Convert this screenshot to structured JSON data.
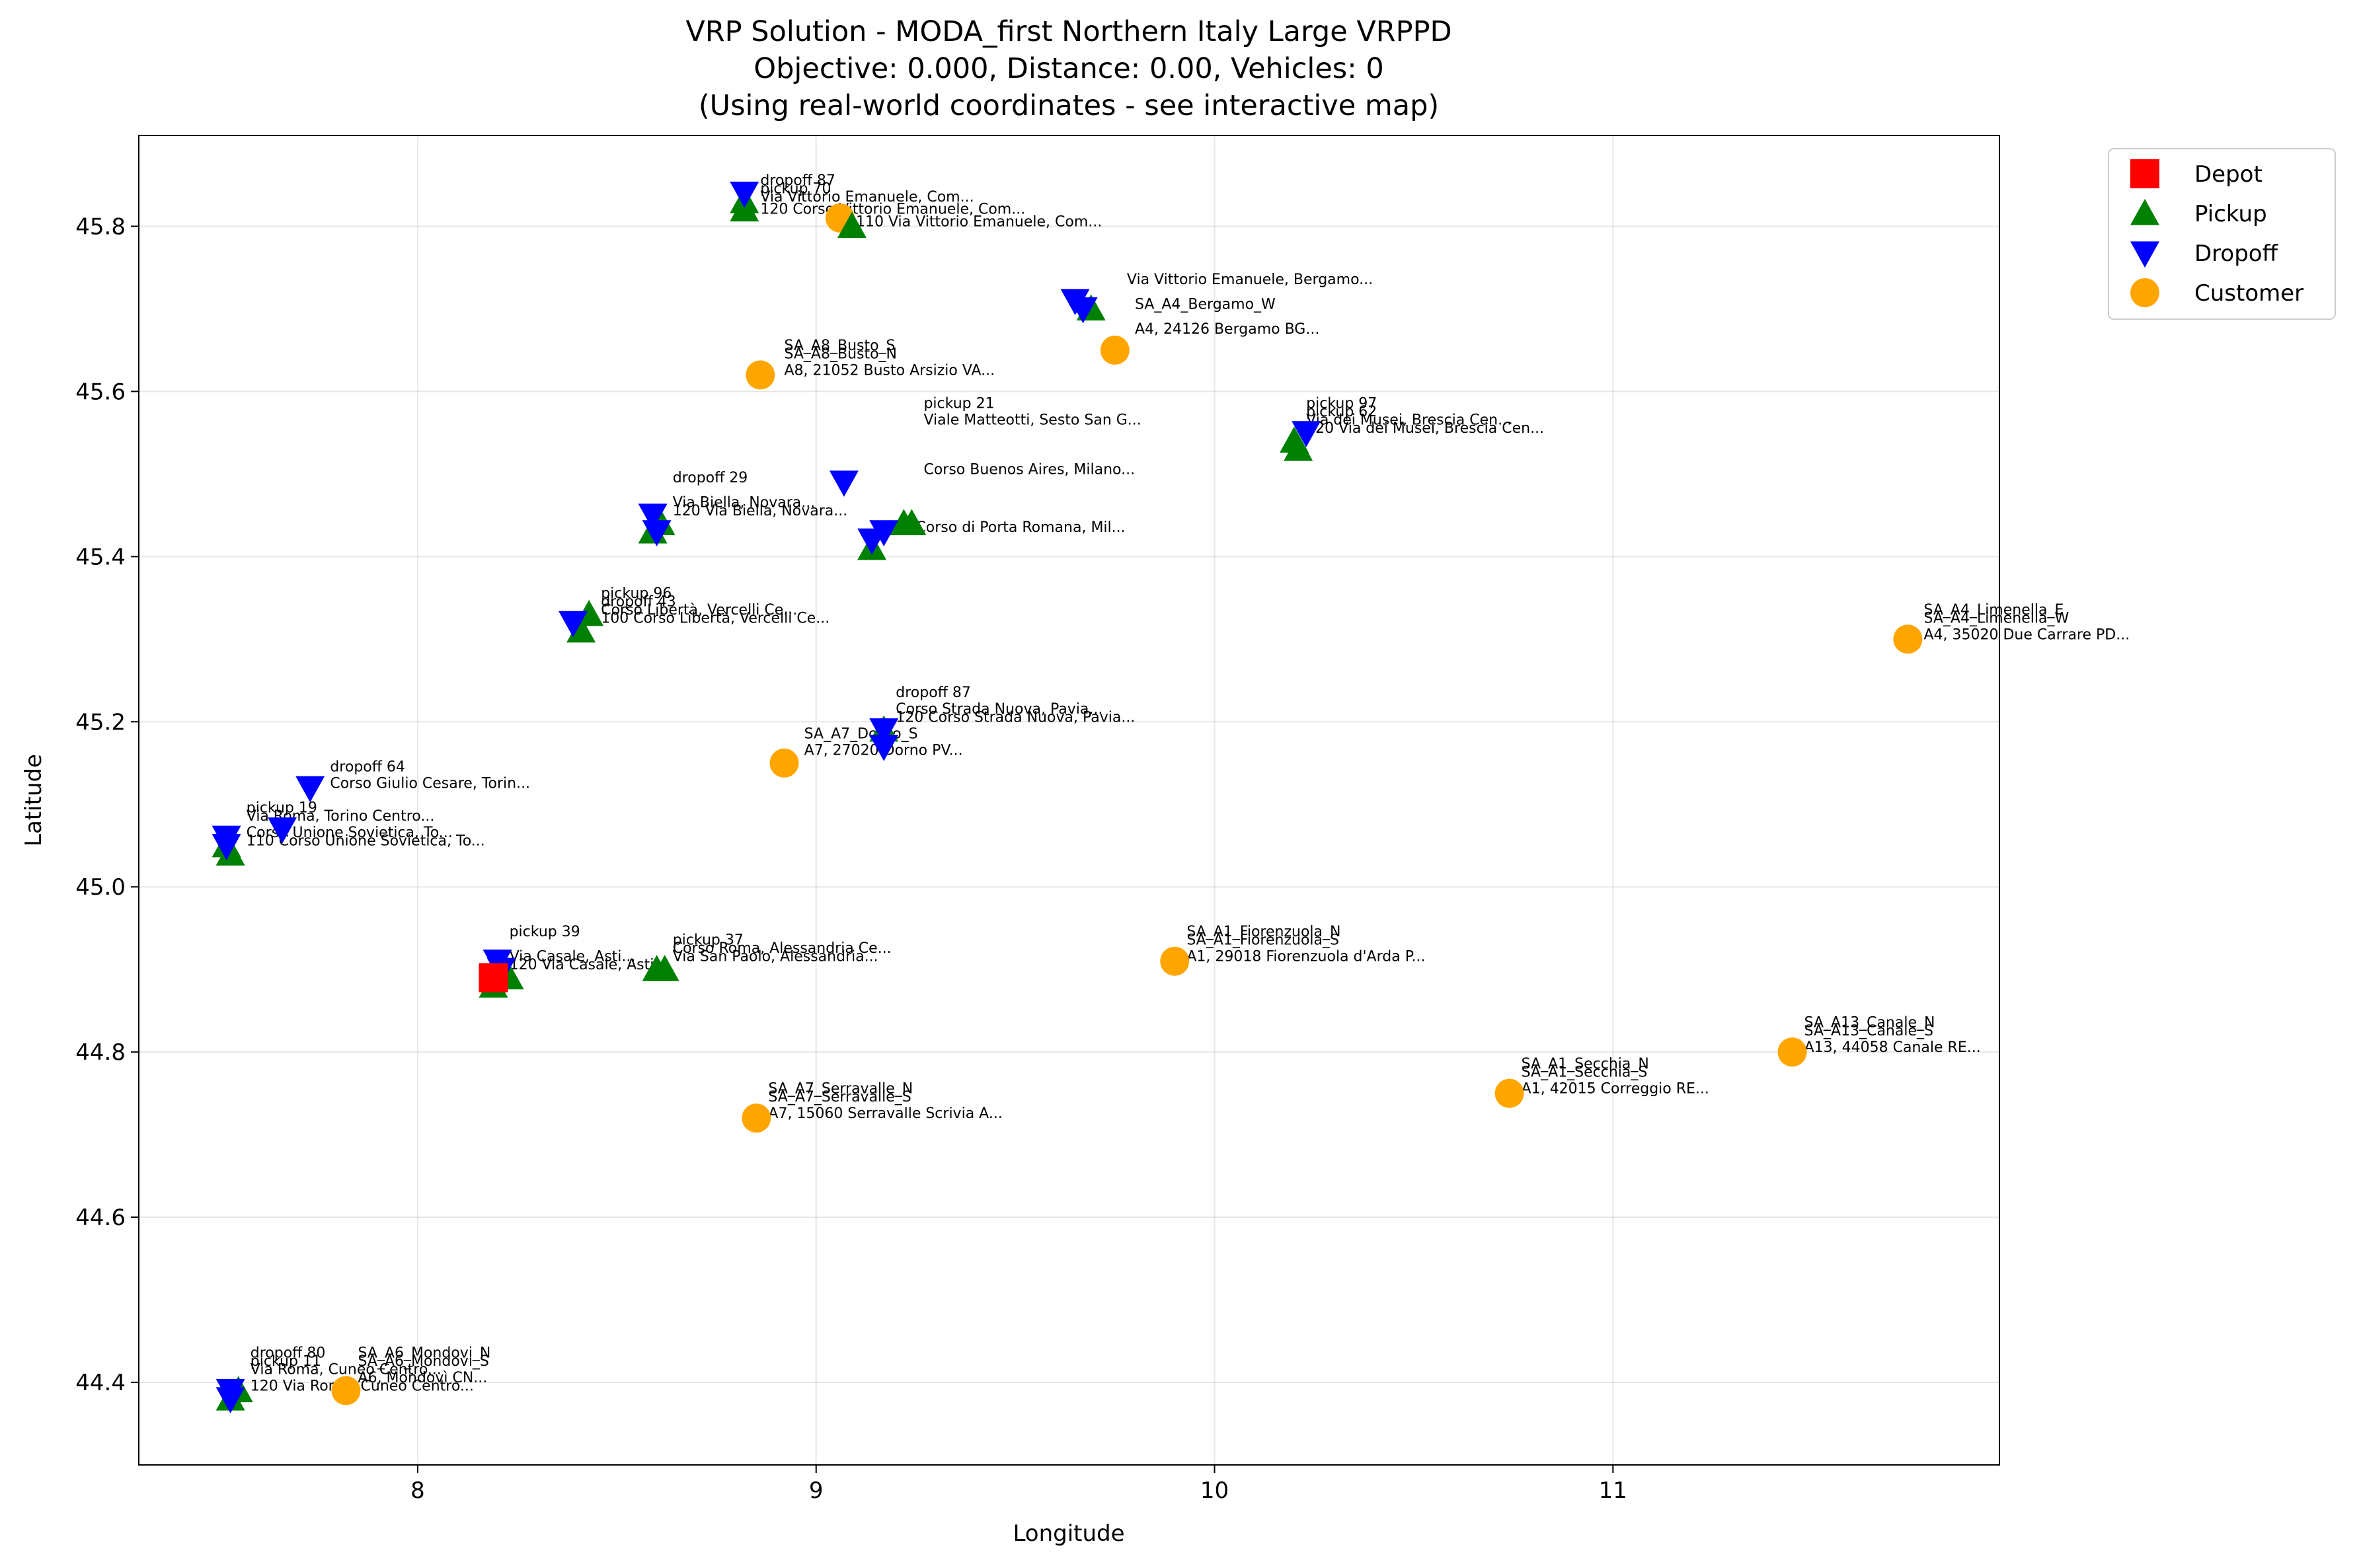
{
  "chart_data": {
    "type": "scatter",
    "title": "VRP Solution - MODA_first Northern Italy Large VRPPD",
    "subtitle": "Objective: 0.000, Distance: 0.00, Vehicles: 0",
    "subtitle2": "(Using real-world coordinates - see interactive map)",
    "xlabel": "Longitude",
    "ylabel": "Latitude",
    "xlim": [
      7.3,
      11.97
    ],
    "ylim": [
      44.3,
      45.91
    ],
    "xticks": [
      "8",
      "9",
      "10",
      "11"
    ],
    "yticks": [
      "44.4",
      "44.6",
      "44.8",
      "45.0",
      "45.2",
      "45.4",
      "45.6",
      "45.8"
    ],
    "grid": true,
    "legend_position": "upper-right-outside",
    "series": [
      {
        "name": "Depot",
        "marker": "square",
        "color": "#ff0000",
        "points": [
          [
            8.19,
            44.89
          ]
        ]
      },
      {
        "name": "Pickup",
        "marker": "triangle-up",
        "color": "#008000",
        "points": [
          [
            8.82,
            45.83
          ],
          [
            8.82,
            45.82
          ],
          [
            9.09,
            45.8
          ],
          [
            9.69,
            45.7
          ],
          [
            10.2,
            45.54
          ],
          [
            10.21,
            45.53
          ],
          [
            8.59,
            45.43
          ],
          [
            8.61,
            45.44
          ],
          [
            9.14,
            45.41
          ],
          [
            9.22,
            45.44
          ],
          [
            9.24,
            45.44
          ],
          [
            8.41,
            45.31
          ],
          [
            8.43,
            45.33
          ],
          [
            9.17,
            45.19
          ],
          [
            7.52,
            45.05
          ],
          [
            7.53,
            45.04
          ],
          [
            8.19,
            44.88
          ],
          [
            8.23,
            44.89
          ],
          [
            8.6,
            44.9
          ],
          [
            8.62,
            44.9
          ],
          [
            7.53,
            44.38
          ],
          [
            7.55,
            44.39
          ]
        ]
      },
      {
        "name": "Dropoff",
        "marker": "triangle-down",
        "color": "#0000ff",
        "points": [
          [
            8.82,
            45.84
          ],
          [
            9.65,
            45.71
          ],
          [
            9.67,
            45.7
          ],
          [
            10.23,
            45.55
          ],
          [
            8.59,
            45.45
          ],
          [
            8.6,
            45.43
          ],
          [
            9.07,
            45.49
          ],
          [
            9.14,
            45.42
          ],
          [
            9.17,
            45.43
          ],
          [
            8.39,
            45.32
          ],
          [
            9.17,
            45.19
          ],
          [
            9.17,
            45.17
          ],
          [
            7.52,
            45.06
          ],
          [
            7.52,
            45.05
          ],
          [
            7.66,
            45.07
          ],
          [
            7.73,
            45.12
          ],
          [
            8.2,
            44.91
          ],
          [
            8.21,
            44.9
          ],
          [
            7.53,
            44.39
          ],
          [
            7.53,
            44.38
          ]
        ]
      },
      {
        "name": "Customer",
        "marker": "circle",
        "color": "#ffa500",
        "points": [
          [
            9.06,
            45.81
          ],
          [
            8.86,
            45.62
          ],
          [
            9.75,
            45.65
          ],
          [
            11.74,
            45.3
          ],
          [
            8.92,
            45.15
          ],
          [
            9.9,
            44.91
          ],
          [
            8.85,
            44.72
          ],
          [
            10.74,
            44.75
          ],
          [
            11.45,
            44.8
          ],
          [
            7.82,
            44.39
          ]
        ]
      }
    ],
    "annotations": [
      {
        "x": 8.92,
        "y": 45.65,
        "text": "SA_A8_Busto_S"
      },
      {
        "x": 8.92,
        "y": 45.64,
        "text": "SA_A8_Busto_N"
      },
      {
        "x": 8.92,
        "y": 45.62,
        "text": "A8, 21052 Busto Arsizio VA..."
      },
      {
        "x": 9.8,
        "y": 45.7,
        "text": "SA_A4_Bergamo_W"
      },
      {
        "x": 9.8,
        "y": 45.67,
        "text": "A4, 24126 Bergamo BG..."
      },
      {
        "x": 9.78,
        "y": 45.73,
        "text": "Via Vittorio Emanuele, Bergamo..."
      },
      {
        "x": 8.86,
        "y": 45.85,
        "text": "dropoff 87"
      },
      {
        "x": 8.86,
        "y": 45.84,
        "text": "pickup 70"
      },
      {
        "x": 8.86,
        "y": 45.83,
        "text": "Via Vittorio Emanuele, Com..."
      },
      {
        "x": 8.86,
        "y": 45.815,
        "text": "120 Corso Vittorio Emanuele, Com..."
      },
      {
        "x": 9.1,
        "y": 45.8,
        "text": "110 Via Vittorio Emanuele, Com..."
      },
      {
        "x": 10.23,
        "y": 45.58,
        "text": "pickup 97"
      },
      {
        "x": 10.23,
        "y": 45.57,
        "text": "pickup 62"
      },
      {
        "x": 10.23,
        "y": 45.56,
        "text": "Via dei Musei, Brescia Cen..."
      },
      {
        "x": 10.23,
        "y": 45.55,
        "text": "120 Via dei Musei, Brescia Cen..."
      },
      {
        "x": 9.27,
        "y": 45.58,
        "text": "pickup 21"
      },
      {
        "x": 9.27,
        "y": 45.56,
        "text": "Viale Matteotti, Sesto San G..."
      },
      {
        "x": 9.27,
        "y": 45.5,
        "text": "Corso Buenos Aires, Milano..."
      },
      {
        "x": 9.25,
        "y": 45.43,
        "text": "Corso di Porta Romana, Mil..."
      },
      {
        "x": 8.64,
        "y": 45.49,
        "text": "dropoff 29"
      },
      {
        "x": 8.64,
        "y": 45.46,
        "text": "Via Biella, Novara..."
      },
      {
        "x": 8.64,
        "y": 45.45,
        "text": "120 Via Biella, Novara..."
      },
      {
        "x": 8.46,
        "y": 45.35,
        "text": "pickup 96"
      },
      {
        "x": 8.46,
        "y": 45.34,
        "text": "dropoff 43"
      },
      {
        "x": 8.46,
        "y": 45.33,
        "text": "Corso Libertà, Vercelli Ce..."
      },
      {
        "x": 8.46,
        "y": 45.32,
        "text": "100 Corso Libertà, Vercelli Ce..."
      },
      {
        "x": 9.2,
        "y": 45.23,
        "text": "dropoff 87"
      },
      {
        "x": 9.2,
        "y": 45.21,
        "text": "Corso Strada Nuova, Pavia..."
      },
      {
        "x": 9.2,
        "y": 45.2,
        "text": "120 Corso Strada Nuova, Pavia..."
      },
      {
        "x": 8.97,
        "y": 45.18,
        "text": "SA_A7_Dorno_S"
      },
      {
        "x": 8.97,
        "y": 45.16,
        "text": "A7, 27020 Dorno PV..."
      },
      {
        "x": 7.78,
        "y": 45.14,
        "text": "dropoff 64"
      },
      {
        "x": 7.78,
        "y": 45.12,
        "text": "Corso Giulio Cesare, Torin..."
      },
      {
        "x": 7.57,
        "y": 45.09,
        "text": "pickup 19"
      },
      {
        "x": 7.57,
        "y": 45.08,
        "text": "Via Roma, Torino Centro..."
      },
      {
        "x": 7.57,
        "y": 45.06,
        "text": "Corso Unione Sovietica, To..."
      },
      {
        "x": 7.57,
        "y": 45.05,
        "text": "110 Corso Unione Sovietica, To..."
      },
      {
        "x": 8.23,
        "y": 44.94,
        "text": "pickup 39"
      },
      {
        "x": 8.23,
        "y": 44.91,
        "text": "Via Casale, Asti..."
      },
      {
        "x": 8.23,
        "y": 44.9,
        "text": "120 Via Casale, Asti..."
      },
      {
        "x": 8.64,
        "y": 44.93,
        "text": "pickup 37"
      },
      {
        "x": 8.64,
        "y": 44.92,
        "text": "Corso Roma, Alessandria Ce..."
      },
      {
        "x": 8.64,
        "y": 44.91,
        "text": "Via San Paolo, Alessandria..."
      },
      {
        "x": 9.93,
        "y": 44.94,
        "text": "SA_A1_Fiorenzuola_N"
      },
      {
        "x": 9.93,
        "y": 44.93,
        "text": "SA_A1_Fiorenzuola_S"
      },
      {
        "x": 9.93,
        "y": 44.91,
        "text": "A1, 29018 Fiorenzuola d'Arda P..."
      },
      {
        "x": 8.88,
        "y": 44.75,
        "text": "SA_A7_Serravalle_N"
      },
      {
        "x": 8.88,
        "y": 44.74,
        "text": "SA_A7_Serravalle_S"
      },
      {
        "x": 8.88,
        "y": 44.72,
        "text": "A7, 15060 Serravalle Scrivia A..."
      },
      {
        "x": 10.77,
        "y": 44.78,
        "text": "SA_A1_Secchia_N"
      },
      {
        "x": 10.77,
        "y": 44.77,
        "text": "SA_A1_Secchia_S"
      },
      {
        "x": 10.77,
        "y": 44.75,
        "text": "A1, 42015 Correggio RE..."
      },
      {
        "x": 11.48,
        "y": 44.83,
        "text": "SA_A13_Canale_N"
      },
      {
        "x": 11.48,
        "y": 44.82,
        "text": "SA_A13_Canale_S"
      },
      {
        "x": 11.48,
        "y": 44.8,
        "text": "A13, 44058 Canale RE..."
      },
      {
        "x": 11.78,
        "y": 45.33,
        "text": "SA_A4_Limenella_E"
      },
      {
        "x": 11.78,
        "y": 45.32,
        "text": "SA_A4_Limenella_W"
      },
      {
        "x": 11.78,
        "y": 45.3,
        "text": "A4, 35020 Due Carrare PD..."
      },
      {
        "x": 7.58,
        "y": 44.43,
        "text": "dropoff 80"
      },
      {
        "x": 7.58,
        "y": 44.42,
        "text": "pickup 11"
      },
      {
        "x": 7.85,
        "y": 44.43,
        "text": "SA_A6_Mondovi_N"
      },
      {
        "x": 7.85,
        "y": 44.42,
        "text": "SA_A6_Mondovi_S"
      },
      {
        "x": 7.58,
        "y": 44.41,
        "text": "Via Roma, Cuneo Centro..."
      },
      {
        "x": 7.85,
        "y": 44.4,
        "text": "A6, Mondovì CN..."
      },
      {
        "x": 7.58,
        "y": 44.39,
        "text": "120 Via Roma, Cuneo Centro..."
      }
    ]
  }
}
